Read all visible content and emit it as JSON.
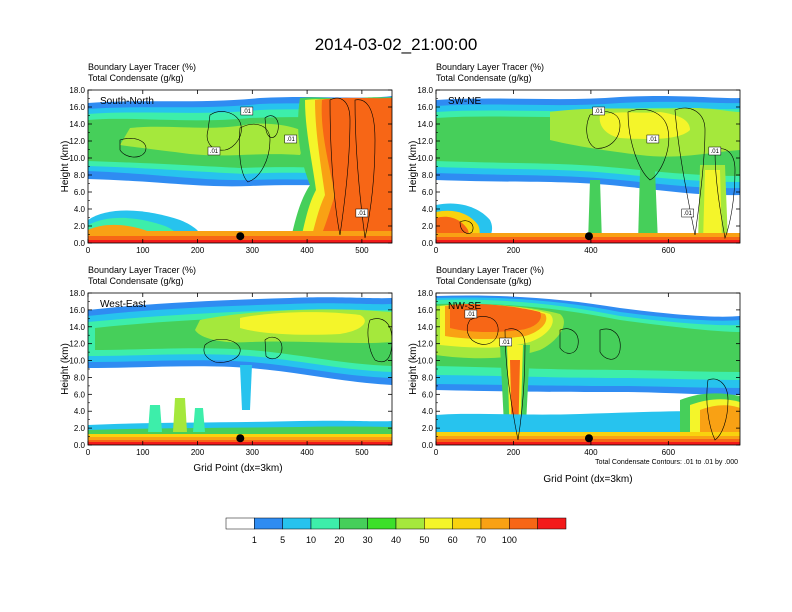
{
  "title": "2014-03-02_21:00:00",
  "subtitle_line1": "Boundary Layer Tracer    (%)",
  "subtitle_line2": "Total Condensate    (g/kg)",
  "ylabel": "Height (km)",
  "xlabel": "Grid Point (dx=3km)",
  "contour_note": "Total Condensate Contours: .01 to .01 by .000",
  "contour_label": ".01",
  "chart_data": [
    {
      "type": "heatmap",
      "name": "South-North",
      "label": "South-North",
      "xlim": [
        0,
        555
      ],
      "xticks": [
        "0",
        "100",
        "200",
        "300",
        "400",
        "500"
      ],
      "ylim": [
        0,
        18
      ],
      "yticks": [
        "0.0",
        "2.0",
        "4.0",
        "6.0",
        "8.0",
        "10.0",
        "12.0",
        "14.0",
        "16.0",
        "18.0"
      ],
      "marker_x": 278,
      "storm_core_x": [
        400,
        555
      ],
      "contour_label_x": [
        290,
        370,
        500,
        230
      ]
    },
    {
      "type": "heatmap",
      "name": "SW-NE",
      "label": "SW-NE",
      "xlim": [
        0,
        785
      ],
      "xticks": [
        "0",
        "200",
        "400",
        "600"
      ],
      "ylim": [
        0,
        18
      ],
      "yticks": [
        "0.0",
        "2.0",
        "4.0",
        "6.0",
        "8.0",
        "10.0",
        "12.0",
        "14.0",
        "16.0",
        "18.0"
      ],
      "marker_x": 395,
      "storm_core_x": [],
      "contour_label_x": [
        420,
        560,
        650,
        720
      ]
    },
    {
      "type": "heatmap",
      "name": "West-East",
      "label": "West-East",
      "xlim": [
        0,
        555
      ],
      "xticks": [
        "0",
        "100",
        "200",
        "300",
        "400",
        "500"
      ],
      "ylim": [
        0,
        18
      ],
      "yticks": [
        "0.0",
        "2.0",
        "4.0",
        "6.0",
        "8.0",
        "10.0",
        "12.0",
        "14.0",
        "16.0",
        "18.0"
      ],
      "marker_x": 278,
      "storm_core_x": [],
      "contour_label_x": []
    },
    {
      "type": "heatmap",
      "name": "NW-SE",
      "label": "NW-SE",
      "xlim": [
        0,
        785
      ],
      "xticks": [
        "0",
        "200",
        "400",
        "600"
      ],
      "ylim": [
        0,
        18
      ],
      "yticks": [
        "0.0",
        "2.0",
        "4.0",
        "6.0",
        "8.0",
        "10.0",
        "12.0",
        "14.0",
        "16.0",
        "18.0"
      ],
      "marker_x": 395,
      "storm_core_x": [
        70,
        290
      ],
      "contour_label_x": [
        90,
        180
      ]
    }
  ],
  "colorbar": {
    "labels": [
      "1",
      "5",
      "10",
      "20",
      "30",
      "40",
      "50",
      "60",
      "70",
      "100"
    ],
    "colors": [
      "#ffffff",
      "#2f8cf2",
      "#27c3ee",
      "#3deeaa",
      "#46cf5a",
      "#3ce02a",
      "#a5e83c",
      "#f4f52a",
      "#f9d20e",
      "#f9a114",
      "#f76616",
      "#f31a1a"
    ]
  }
}
